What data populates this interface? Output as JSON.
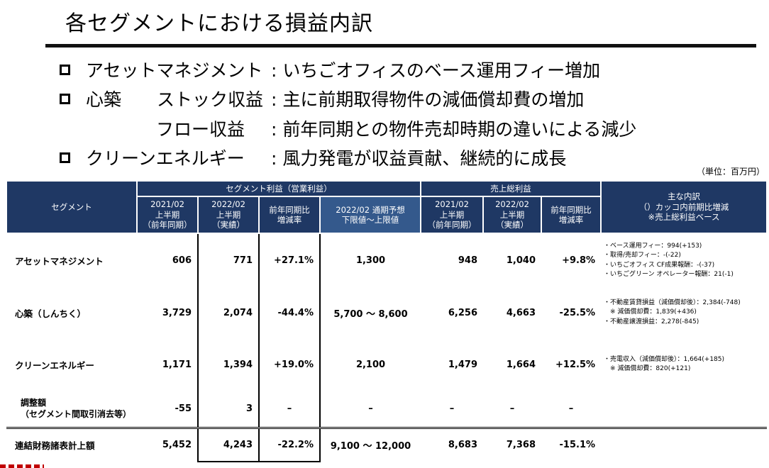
{
  "title": "各セグメントにおける損益内訳",
  "bullets": [
    {
      "label": "アセットマネジメント",
      "desc": ": いちごオフィスのベース運用フィー増加",
      "box": true
    },
    {
      "label": "心築　　ストック収益",
      "desc": ": 主に前期取得物件の減価償却費の増加",
      "box": true
    },
    {
      "label": "フロー収益",
      "desc": ": 前年同期との物件売却時期の違いによる減少",
      "box": false
    },
    {
      "label": "クリーンエネルギー",
      "desc": ": 風力発電が収益貢献、継続的に成長",
      "box": true
    }
  ],
  "unit": "（単位：百万円）",
  "table": {
    "headers": {
      "segment": "セグメント",
      "segment_profit": "セグメント利益（営業利益）",
      "gross_profit": "売上総利益",
      "breakdown": [
        "主な内訳",
        "（）カッコ内前期比増減",
        "※売上総利益ベース"
      ],
      "sp_prev": [
        "2021/02",
        "上半期",
        "（前年同期）"
      ],
      "sp_curr": [
        "2022/02",
        "上半期",
        "（実績）"
      ],
      "sp_change": [
        "前年同期比",
        "増減率"
      ],
      "sp_forecast": [
        "2022/02 通期予想",
        "下限値～上限値"
      ],
      "gp_prev": [
        "2021/02",
        "上半期",
        "（前年同期）"
      ],
      "gp_curr": [
        "2022/02",
        "上半期",
        "（実績）"
      ],
      "gp_change": [
        "前年同期比",
        "増減率"
      ]
    },
    "rows": [
      {
        "segment": "アセットマネジメント",
        "sp_prev": "606",
        "sp_curr": "771",
        "sp_change": "+27.1%",
        "sp_forecast": "1,300",
        "gp_prev": "948",
        "gp_curr": "1,040",
        "gp_change": "+9.8%",
        "notes": [
          "・ベース運用フィー：994(+153)",
          "・取得/売却フィー：-(-22)",
          "・いちごオフィス CF成果報酬：-(-37)",
          "・いちごグリーン オペレーター報酬：21(-1)"
        ]
      },
      {
        "segment": "心築（しんちく）",
        "sp_prev": "3,729",
        "sp_curr": "2,074",
        "sp_change": "-44.4%",
        "sp_forecast": "5,700 ～ 8,600",
        "gp_prev": "6,256",
        "gp_curr": "4,663",
        "gp_change": "-25.5%",
        "notes": [
          "・不動産賃貸損益（減価償却後）：2,384(-748)",
          "　※ 減価償却費：1,839(+436)",
          "・不動産譲渡損益：2,278(-845)"
        ]
      },
      {
        "segment": "クリーンエネルギー",
        "sp_prev": "1,171",
        "sp_curr": "1,394",
        "sp_change": "+19.0%",
        "sp_forecast": "2,100",
        "gp_prev": "1,479",
        "gp_curr": "1,664",
        "gp_change": "+12.5%",
        "notes": [
          "・売電収入（減価償却後）：1,664(+185)",
          "　※ 減価償却費：820(+121)"
        ]
      }
    ],
    "adjustment": {
      "segment": [
        "調整額",
        "（セグメント間取引消去等）"
      ],
      "sp_prev": "-55",
      "sp_curr": "3",
      "sp_change": "–",
      "sp_forecast": "–",
      "gp_prev": "–",
      "gp_curr": "–",
      "gp_change": "–"
    },
    "total": {
      "segment": "連結財務諸表計上額",
      "sp_prev": "5,452",
      "sp_curr": "4,243",
      "sp_change": "-22.2%",
      "sp_forecast": "9,100 ～ 12,000",
      "gp_prev": "8,683",
      "gp_curr": "7,368",
      "gp_change": "-15.1%"
    }
  }
}
